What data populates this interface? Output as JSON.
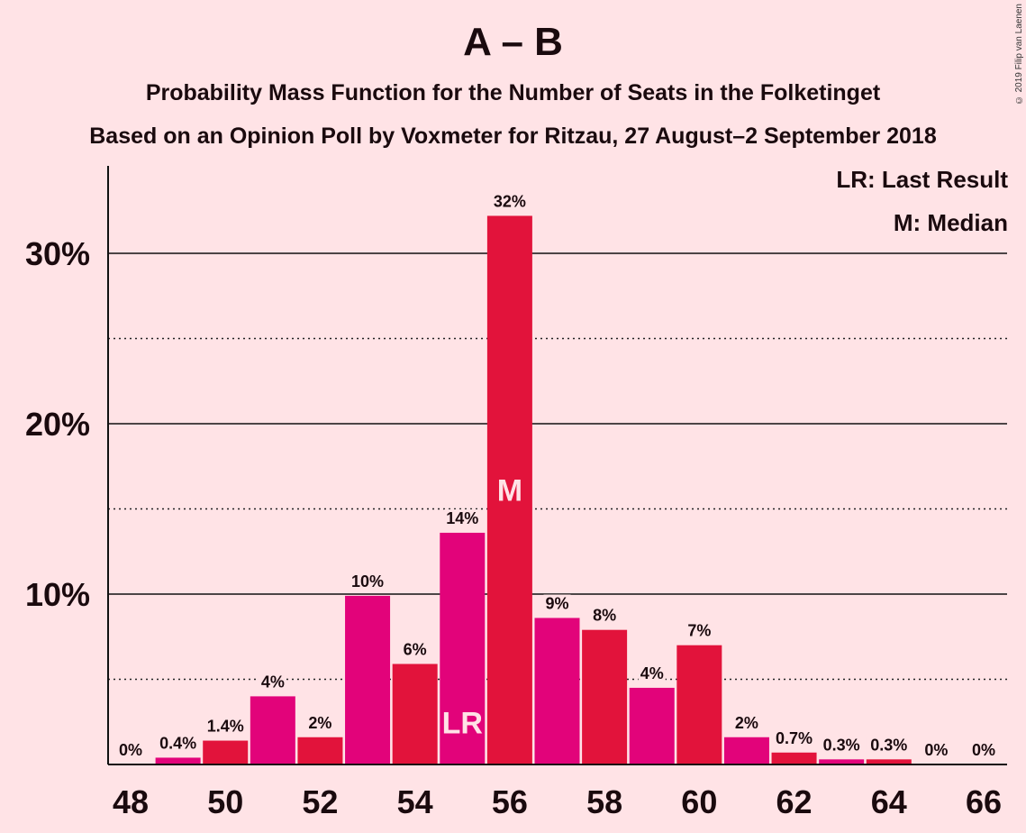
{
  "header": {
    "title": "A – B",
    "subtitle1": "Probability Mass Function for the Number of Seats in the Folketinget",
    "subtitle2": "Based on an Opinion Poll by Voxmeter for Ritzau, 27 August–2 September 2018",
    "copyright": "© 2019 Filip van Laenen"
  },
  "legend": {
    "last_result": "LR: Last Result",
    "median": "M: Median"
  },
  "colors": {
    "background": "#FFE3E6",
    "bar_even": "#E2133B",
    "bar_odd": "#E2037A",
    "marker_text": "#FFE3E6"
  },
  "chart_data": {
    "type": "bar",
    "x": [
      48,
      49,
      50,
      51,
      52,
      53,
      54,
      55,
      56,
      57,
      58,
      59,
      60,
      61,
      62,
      63,
      64,
      65,
      66
    ],
    "values": [
      0,
      0.4,
      1.4,
      4.0,
      1.6,
      9.9,
      5.9,
      13.6,
      32.2,
      8.6,
      7.9,
      4.5,
      7.0,
      1.6,
      0.7,
      0.3,
      0.3,
      0,
      0
    ],
    "data_labels": [
      "0%",
      "0.4%",
      "1.4%",
      "4%",
      "2%",
      "10%",
      "6%",
      "14%",
      "32%",
      "9%",
      "8%",
      "4%",
      "7%",
      "2%",
      "0.7%",
      "0.3%",
      "0.3%",
      "0%",
      "0%"
    ],
    "x_tick_labels": [
      "48",
      "50",
      "52",
      "54",
      "56",
      "58",
      "60",
      "62",
      "64",
      "66"
    ],
    "y_tick_labels": [
      "10%",
      "20%",
      "30%"
    ],
    "ylim": [
      0,
      35
    ],
    "y_major_ticks": [
      10,
      20,
      30
    ],
    "y_minor_ticks": [
      5,
      15,
      25
    ],
    "markers": [
      {
        "seat": 55,
        "text": "LR"
      },
      {
        "seat": 56,
        "text": "M"
      }
    ]
  }
}
